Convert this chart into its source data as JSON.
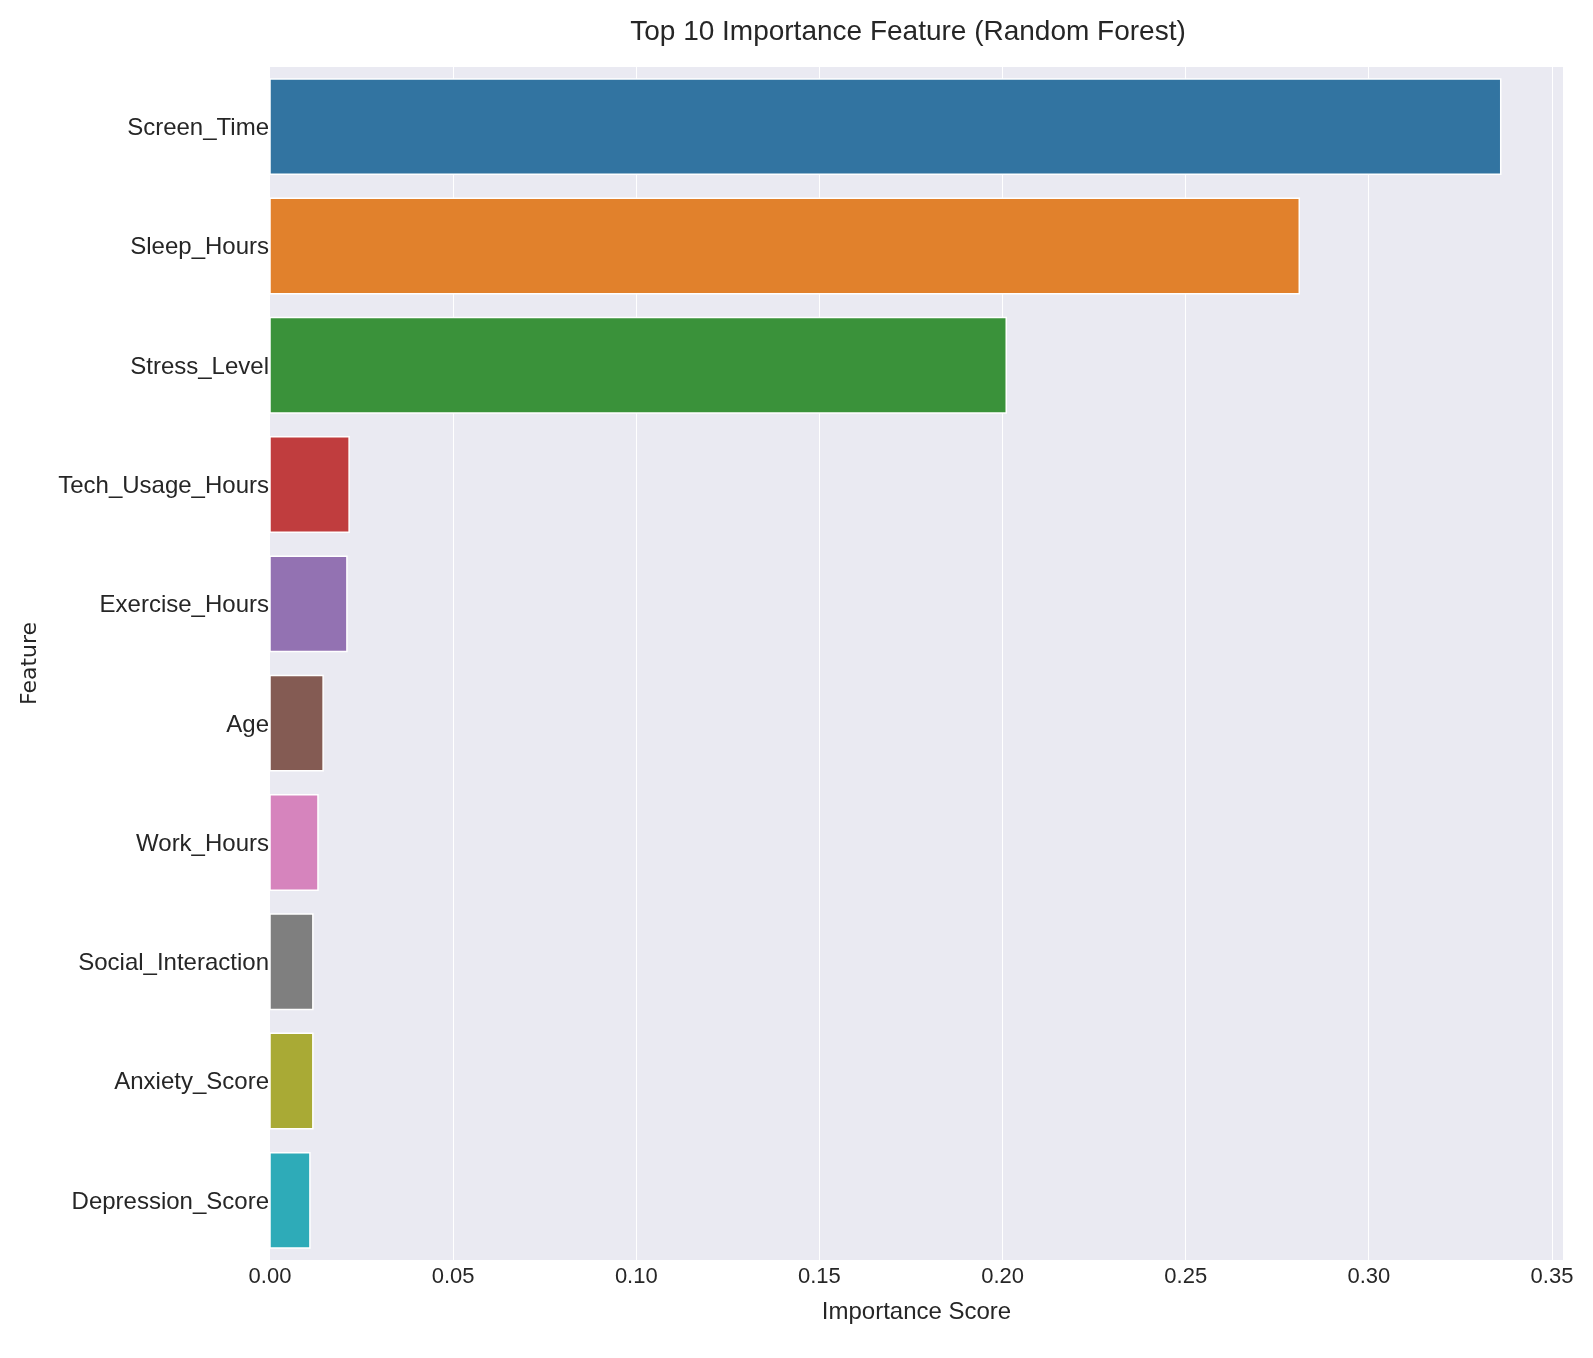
{
  "chart_data": {
    "type": "bar",
    "orientation": "horizontal",
    "title": "Top 10 Importance Feature (Random Forest)",
    "xlabel": "Importance Score",
    "ylabel": "Feature",
    "categories": [
      "Screen_Time",
      "Sleep_Hours",
      "Stress_Level",
      "Tech_Usage_Hours",
      "Exercise_Hours",
      "Age",
      "Work_Hours",
      "Social_Interaction",
      "Anxiety_Score",
      "Depression_Score"
    ],
    "values": [
      0.336,
      0.281,
      0.201,
      0.0216,
      0.021,
      0.0145,
      0.0131,
      0.0117,
      0.0117,
      0.0109
    ],
    "colors": [
      "#3274a1",
      "#e1812c",
      "#3a923a",
      "#c03d3e",
      "#9372b2",
      "#845b53",
      "#d684bd",
      "#7f7f7f",
      "#a9aa35",
      "#2eabb8"
    ],
    "xlim": [
      0,
      0.353
    ],
    "xticks": [
      {
        "value": 0,
        "label": "0.00"
      },
      {
        "value": 0.05,
        "label": "0.05"
      },
      {
        "value": 0.1,
        "label": "0.10"
      },
      {
        "value": 0.15,
        "label": "0.15"
      },
      {
        "value": 0.2,
        "label": "0.20"
      },
      {
        "value": 0.25,
        "label": "0.25"
      },
      {
        "value": 0.3,
        "label": "0.30"
      },
      {
        "value": 0.35,
        "label": "0.35"
      }
    ],
    "grid": "x",
    "legend": false
  }
}
